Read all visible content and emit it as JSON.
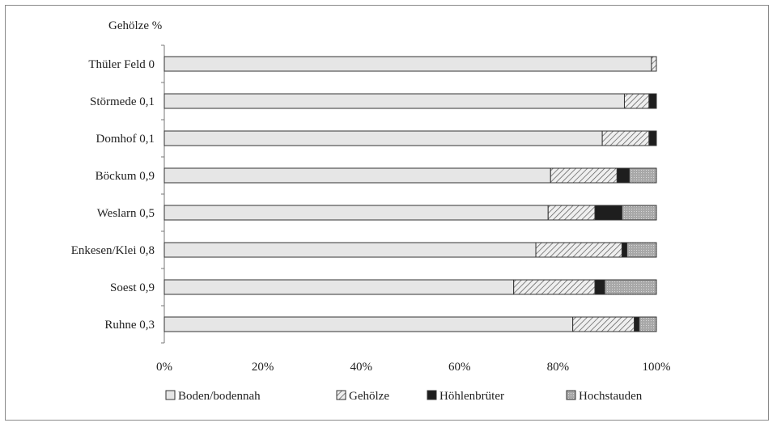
{
  "chart_data": {
    "type": "bar",
    "orientation": "horizontal",
    "stacked": true,
    "percent": true,
    "title": "Gehölze %",
    "categories": [
      "Thüler Feld",
      "Störmede",
      "Domhof",
      "Böckum",
      "Weslarn",
      "Enkesen/Klei",
      "Soest",
      "Ruhne"
    ],
    "category_values": [
      "0",
      "0,1",
      "0,1",
      "0,9",
      "0,5",
      "0,8",
      "0,9",
      "0,3"
    ],
    "series": [
      {
        "name": "Boden/bodennah",
        "values": [
          99,
          93.5,
          89,
          78.5,
          78,
          75.5,
          71,
          83
        ],
        "pattern": "light"
      },
      {
        "name": "Gehölze",
        "values": [
          1,
          5,
          9.5,
          13.5,
          9.5,
          17.5,
          16.5,
          12.5
        ],
        "pattern": "hatch"
      },
      {
        "name": "Höhlenbrüter",
        "values": [
          0,
          1.5,
          1.5,
          2.5,
          5.5,
          1,
          2,
          1
        ],
        "pattern": "dark"
      },
      {
        "name": "Hochstauden",
        "values": [
          0,
          0,
          0,
          5.5,
          7,
          6,
          10.5,
          3.5
        ],
        "pattern": "grey"
      }
    ],
    "xticks": [
      "0%",
      "20%",
      "40%",
      "60%",
      "80%",
      "100%"
    ],
    "xlim": [
      0,
      100
    ],
    "grid": false,
    "legend_position": "bottom"
  }
}
